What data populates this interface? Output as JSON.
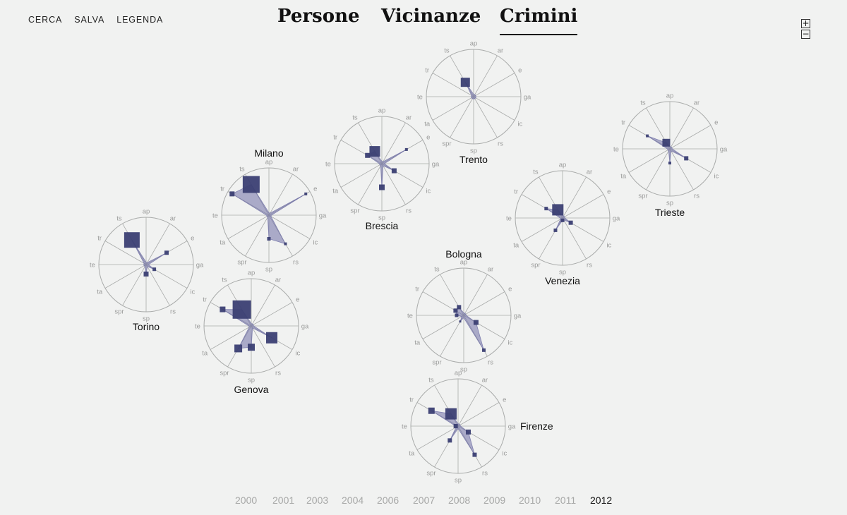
{
  "nav": {
    "items": [
      "CERCA",
      "SALVA",
      "LEGENDA"
    ]
  },
  "views": {
    "items": [
      "Persone",
      "Vicinanze",
      "Crimini"
    ],
    "active": "Crimini"
  },
  "zoom": {
    "plus": "+",
    "minus": "−"
  },
  "years": {
    "items": [
      "2000",
      "2001",
      "2003",
      "2004",
      "2006",
      "2007",
      "2008",
      "2009",
      "2010",
      "2011",
      "2012"
    ],
    "selected": "2012"
  },
  "colors": {
    "mark": "#3b3f73",
    "fill": "#6f6fa6",
    "grid": "#a9abaa",
    "label": "#9a9b9a"
  },
  "chart_data": {
    "type": "radar",
    "axes": [
      "ap",
      "ar",
      "e",
      "ga",
      "ic",
      "rs",
      "sp",
      "spr",
      "ta",
      "te",
      "tr",
      "ts"
    ],
    "cities": [
      {
        "name": "Torino",
        "values": [
          0.05,
          0.05,
          0.5,
          0.05,
          0.2,
          0.05,
          0.2,
          0.05,
          0.05,
          0.05,
          0.05,
          0.6
        ],
        "sizes": [
          0,
          0,
          6,
          0,
          5,
          0,
          7,
          0,
          0,
          0,
          0,
          22
        ]
      },
      {
        "name": "Milano",
        "values": [
          0.05,
          0.05,
          0.9,
          0.05,
          0.05,
          0.7,
          0.5,
          0.05,
          0.05,
          0.05,
          0.9,
          0.75
        ],
        "sizes": [
          0,
          0,
          4,
          0,
          0,
          4,
          5,
          0,
          0,
          0,
          7,
          24
        ]
      },
      {
        "name": "Genova",
        "values": [
          0.05,
          0.05,
          0.05,
          0.05,
          0.5,
          0.05,
          0.45,
          0.55,
          0.05,
          0.05,
          0.7,
          0.4
        ],
        "sizes": [
          0,
          0,
          0,
          0,
          16,
          0,
          10,
          11,
          0,
          0,
          8,
          26
        ]
      },
      {
        "name": "Brescia",
        "values": [
          0.05,
          0.05,
          0.6,
          0.05,
          0.3,
          0.05,
          0.5,
          0.05,
          0.05,
          0.05,
          0.35,
          0.3
        ],
        "sizes": [
          0,
          0,
          4,
          0,
          7,
          0,
          8,
          0,
          0,
          0,
          7,
          15
        ]
      },
      {
        "name": "Trento",
        "values": [
          0.05,
          0.05,
          0.05,
          0.05,
          0.05,
          0.05,
          0.05,
          0.05,
          0.05,
          0.05,
          0.05,
          0.35
        ],
        "sizes": [
          0,
          0,
          0,
          0,
          0,
          0,
          0,
          0,
          0,
          0,
          0,
          13
        ]
      },
      {
        "name": "Trieste",
        "values": [
          0.05,
          0.05,
          0.05,
          0.05,
          0.4,
          0.05,
          0.3,
          0.05,
          0.05,
          0.05,
          0.55,
          0.15
        ],
        "sizes": [
          0,
          0,
          0,
          0,
          6,
          0,
          4,
          0,
          0,
          0,
          4,
          11
        ]
      },
      {
        "name": "Venezia",
        "values": [
          0.05,
          0.05,
          0.05,
          0.05,
          0.2,
          0.05,
          0.05,
          0.3,
          0.05,
          0.05,
          0.4,
          0.2
        ],
        "sizes": [
          0,
          0,
          0,
          0,
          6,
          0,
          5,
          5,
          0,
          0,
          5,
          16
        ]
      },
      {
        "name": "Bologna",
        "values": [
          0.05,
          0.05,
          0.05,
          0.05,
          0.3,
          0.85,
          0.05,
          0.15,
          0.05,
          0.15,
          0.2,
          0.2
        ],
        "sizes": [
          0,
          0,
          0,
          0,
          7,
          5,
          0,
          3,
          0,
          5,
          6,
          6
        ]
      },
      {
        "name": "Firenze",
        "values": [
          0.05,
          0.05,
          0.05,
          0.05,
          0.25,
          0.7,
          0.05,
          0.35,
          0.05,
          0.05,
          0.65,
          0.3
        ],
        "sizes": [
          0,
          0,
          0,
          0,
          7,
          6,
          0,
          6,
          0,
          6,
          9,
          16
        ]
      }
    ]
  }
}
